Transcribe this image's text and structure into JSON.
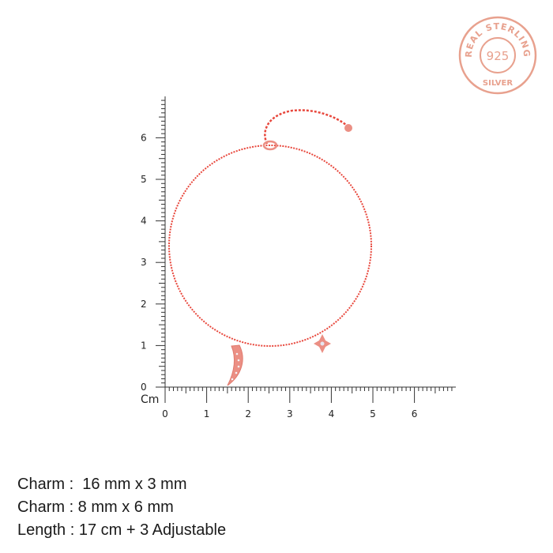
{
  "seal": {
    "top_text": "REAL STERLING",
    "center_text": "925",
    "bottom_text": "SILVER",
    "color": "#e8a18e"
  },
  "ruler": {
    "unit_label": "Cm",
    "vertical_labels": [
      "0",
      "1",
      "2",
      "3",
      "4",
      "5",
      "6"
    ],
    "horizontal_labels": [
      "0",
      "1",
      "2",
      "3",
      "4",
      "5",
      "6"
    ],
    "color": "#333333"
  },
  "product": {
    "chain_color": "#e8473c",
    "charm_color": "#eb8f84",
    "charms": [
      "moon-charm",
      "star-charm"
    ]
  },
  "specs": [
    {
      "label": "Charm :",
      "value": "  16 mm x 3 mm"
    },
    {
      "label": "Charm :",
      "value": " 8 mm x 6 mm"
    },
    {
      "label": "Length :",
      "value": " 17 cm + 3 Adjustable"
    }
  ]
}
